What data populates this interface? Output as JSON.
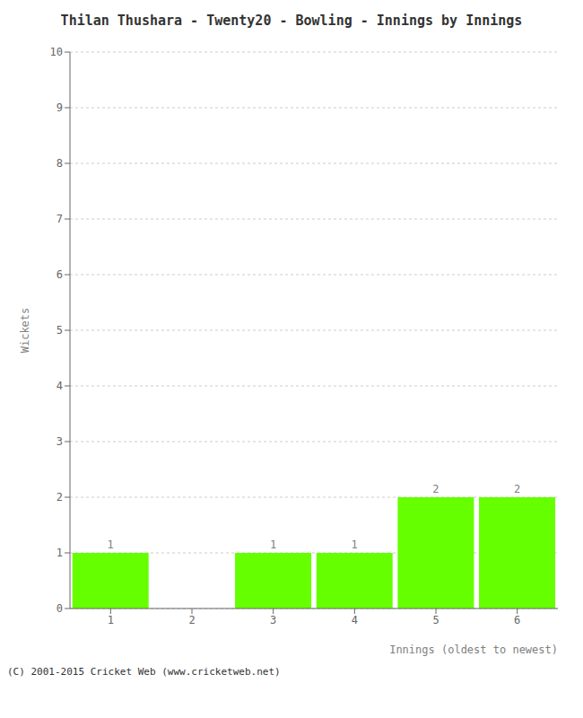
{
  "chart_data": {
    "type": "bar",
    "title": "Thilan Thushara - Twenty20 - Bowling - Innings by Innings",
    "xlabel": "Innings (oldest to newest)",
    "ylabel": "Wickets",
    "categories": [
      "1",
      "2",
      "3",
      "4",
      "5",
      "6"
    ],
    "values": [
      1,
      0,
      1,
      1,
      2,
      2
    ],
    "color": "#66ff00",
    "ylim": [
      0,
      10
    ],
    "yticks": [
      0,
      1,
      2,
      3,
      4,
      5,
      6,
      7,
      8,
      9,
      10
    ],
    "grid": true,
    "data_labels": true,
    "annotations": [
      "(C) 2001-2015 Cricket Web (www.cricketweb.net)"
    ]
  }
}
